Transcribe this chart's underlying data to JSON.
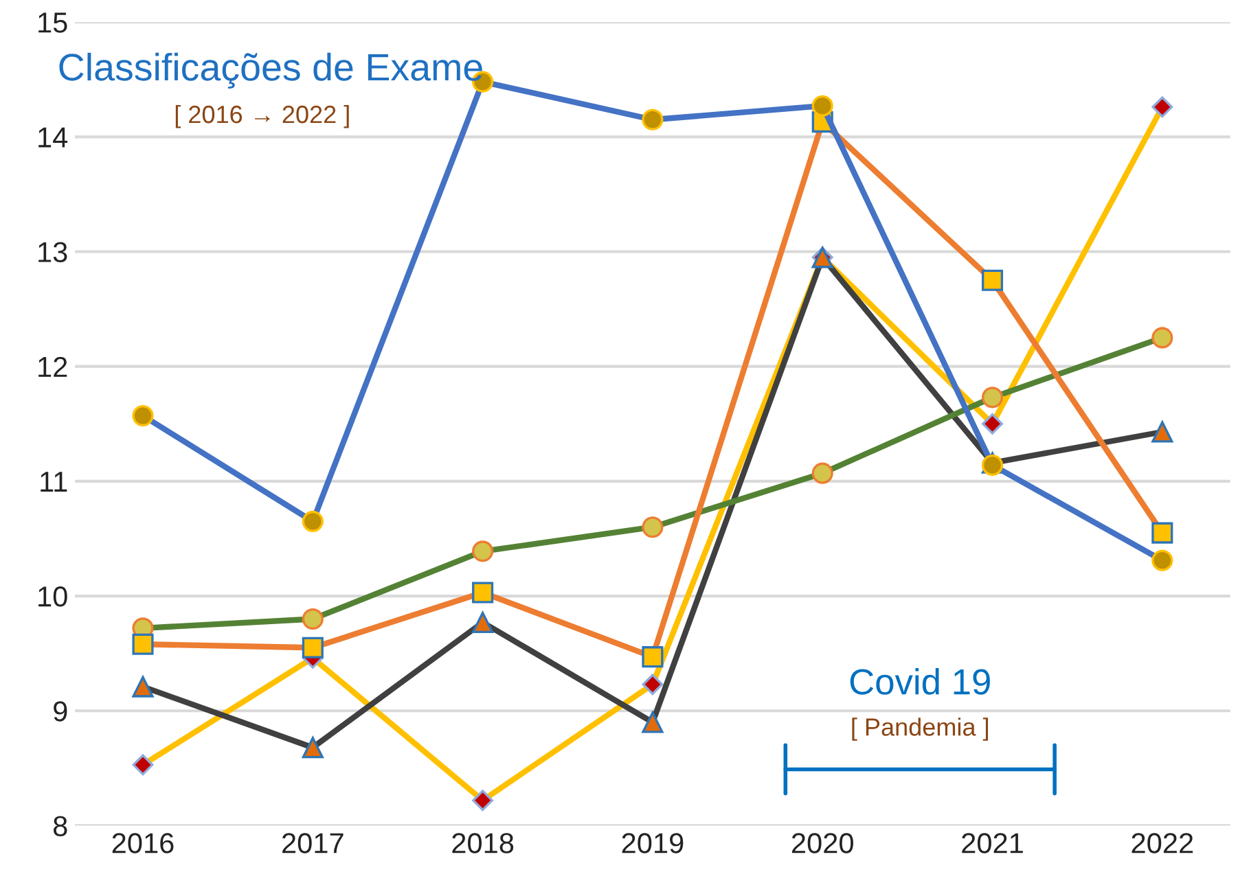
{
  "chart_data": {
    "type": "line",
    "title": "Classificações de Exame",
    "subtitle": "[ 2016 → 2022 ]",
    "x": [
      2016,
      2017,
      2018,
      2019,
      2020,
      2021,
      2022
    ],
    "xlim": [
      2015.6,
      2022.4
    ],
    "xticks": [
      2016,
      2017,
      2018,
      2019,
      2020,
      2021,
      2022
    ],
    "ylim": [
      8,
      15
    ],
    "yticks": [
      8,
      9,
      10,
      11,
      12,
      13,
      14,
      15
    ],
    "grid": "y",
    "legend": false,
    "line_style": "solid",
    "series": [
      {
        "color": "#ffc000",
        "marker": "diamond",
        "values": [
          8.53,
          9.46,
          8.22,
          9.23,
          12.95,
          11.5,
          14.26
        ]
      },
      {
        "color": "#404040",
        "marker": "triangle",
        "values": [
          9.21,
          8.68,
          9.77,
          8.9,
          12.95,
          11.16,
          11.43
        ]
      },
      {
        "color": "#548235",
        "marker": "circle",
        "values": [
          9.72,
          9.8,
          10.39,
          10.6,
          11.07,
          11.73,
          12.25
        ]
      },
      {
        "color": "#ed7d31",
        "marker": "square",
        "values": [
          9.58,
          9.55,
          10.03,
          9.47,
          14.13,
          12.75,
          10.55
        ]
      },
      {
        "color": "#4472c4",
        "marker": "circle",
        "values": [
          11.57,
          10.65,
          14.48,
          14.15,
          14.27,
          11.14,
          10.31
        ]
      }
    ],
    "annotations": [
      "Covid 19",
      "[ Pandemia ]"
    ]
  }
}
